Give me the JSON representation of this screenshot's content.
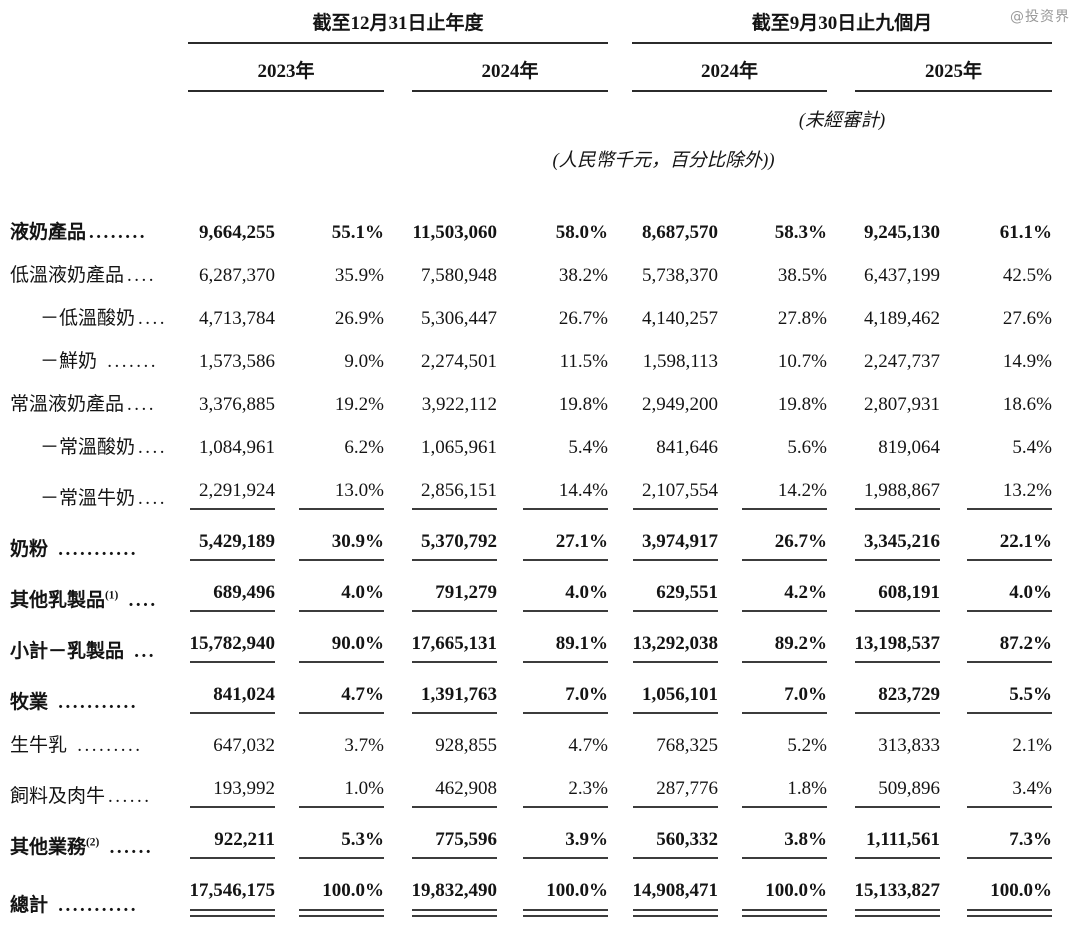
{
  "watermark": "@投资界",
  "header": {
    "group1": "截至12月31日止年度",
    "group2": "截至9月30日止九個月",
    "years": [
      "2023年",
      "2024年",
      "2024年",
      "2025年"
    ],
    "unaudited_note": "(未經審計)",
    "unit_note": "(人民幣千元，百分比除外))"
  },
  "table": {
    "column_semantics": [
      "segment",
      "fy2023_amount",
      "fy2023_pct",
      "fy2024_amount",
      "fy2024_pct",
      "9m2024_amount",
      "9m2024_pct",
      "9m2025_amount",
      "9m2025_pct"
    ],
    "rows": [
      {
        "label": "液奶產品",
        "sup": "",
        "dots": "........",
        "values": [
          "9,664,255",
          "55.1%",
          "11,503,060",
          "58.0%",
          "8,687,570",
          "58.3%",
          "9,245,130",
          "61.1%"
        ]
      },
      {
        "label": "低溫液奶產品",
        "sup": "",
        "dots": "....",
        "values": [
          "6,287,370",
          "35.9%",
          "7,580,948",
          "38.2%",
          "5,738,370",
          "38.5%",
          "6,437,199",
          "42.5%"
        ]
      },
      {
        "label": "－低溫酸奶",
        "sup": "",
        "dots": "....",
        "values": [
          "4,713,784",
          "26.9%",
          "5,306,447",
          "26.7%",
          "4,140,257",
          "27.8%",
          "4,189,462",
          "27.6%"
        ]
      },
      {
        "label": "－鮮奶",
        "sup": "",
        "dots": " .......",
        "values": [
          "1,573,586",
          "9.0%",
          "2,274,501",
          "11.5%",
          "1,598,113",
          "10.7%",
          "2,247,737",
          "14.9%"
        ]
      },
      {
        "label": "常溫液奶產品",
        "sup": "",
        "dots": "....",
        "values": [
          "3,376,885",
          "19.2%",
          "3,922,112",
          "19.8%",
          "2,949,200",
          "19.8%",
          "2,807,931",
          "18.6%"
        ]
      },
      {
        "label": "－常溫酸奶",
        "sup": "",
        "dots": "....",
        "values": [
          "1,084,961",
          "6.2%",
          "1,065,961",
          "5.4%",
          "841,646",
          "5.6%",
          "819,064",
          "5.4%"
        ]
      },
      {
        "label": "－常溫牛奶",
        "sup": "",
        "dots": "....",
        "values": [
          "2,291,924",
          "13.0%",
          "2,856,151",
          "14.4%",
          "2,107,554",
          "14.2%",
          "1,988,867",
          "13.2%"
        ]
      },
      {
        "label": "奶粉",
        "sup": "",
        "dots": " ...........",
        "values": [
          "5,429,189",
          "30.9%",
          "5,370,792",
          "27.1%",
          "3,974,917",
          "26.7%",
          "3,345,216",
          "22.1%"
        ]
      },
      {
        "label": "其他乳製品",
        "sup": "(1)",
        "dots": " ....",
        "values": [
          "689,496",
          "4.0%",
          "791,279",
          "4.0%",
          "629,551",
          "4.2%",
          "608,191",
          "4.0%"
        ]
      },
      {
        "label": "小計－乳製品",
        "sup": "",
        "dots": " ...",
        "values": [
          "15,782,940",
          "90.0%",
          "17,665,131",
          "89.1%",
          "13,292,038",
          "89.2%",
          "13,198,537",
          "87.2%"
        ]
      },
      {
        "label": "牧業",
        "sup": "",
        "dots": " ...........",
        "values": [
          "841,024",
          "4.7%",
          "1,391,763",
          "7.0%",
          "1,056,101",
          "7.0%",
          "823,729",
          "5.5%"
        ]
      },
      {
        "label": "生牛乳",
        "sup": "",
        "dots": " .........",
        "values": [
          "647,032",
          "3.7%",
          "928,855",
          "4.7%",
          "768,325",
          "5.2%",
          "313,833",
          "2.1%"
        ]
      },
      {
        "label": "飼料及肉牛",
        "sup": "",
        "dots": "......",
        "values": [
          "193,992",
          "1.0%",
          "462,908",
          "2.3%",
          "287,776",
          "1.8%",
          "509,896",
          "3.4%"
        ]
      },
      {
        "label": "其他業務",
        "sup": "(2)",
        "dots": " ......",
        "values": [
          "922,211",
          "5.3%",
          "775,596",
          "3.9%",
          "560,332",
          "3.8%",
          "1,111,561",
          "7.3%"
        ]
      },
      {
        "label": "總計",
        "sup": "",
        "dots": " ...........",
        "values": [
          "17,546,175",
          "100.0%",
          "19,832,490",
          "100.0%",
          "14,908,471",
          "100.0%",
          "15,133,827",
          "100.0%"
        ]
      }
    ]
  }
}
